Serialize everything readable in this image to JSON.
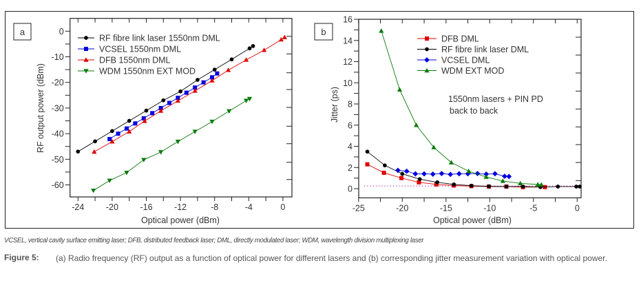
{
  "figure": {
    "abbreviations": "VCSEL, vertical cavity surface emitting laser; DFB, distributed feedback laser; DML, directly modulated laser; WDM, wavelength division multiplexing laser",
    "caption_label": "Figure 5:",
    "caption_text": "(a) Radio frequency (RF) output as a function of optical power for different lasers and (b) corresponding jitter measurement variation with optical power."
  },
  "chart_data": [
    {
      "id": "a",
      "panel_label": "a",
      "type": "line",
      "title": "",
      "xlabel": "Optical power (dBm)",
      "ylabel": "RF output power (dBm)",
      "xlim": [
        -25,
        1
      ],
      "ylim": [
        -65,
        4
      ],
      "xticks": [
        -24,
        -20,
        -16,
        -12,
        -8,
        -4,
        0
      ],
      "xtick_labels": [
        "-24",
        "-20",
        "-16",
        "-12",
        "-8",
        "-4",
        "0"
      ],
      "yticks": [
        0,
        -10,
        -20,
        -30,
        -40,
        -50,
        -60
      ],
      "ytick_labels": [
        "0",
        "-10",
        "-20",
        "-30",
        "-40",
        "-50",
        "-60"
      ],
      "grid": false,
      "legend_position": "top-left",
      "series": [
        {
          "name": "RF fibre link laser 1550nm DML",
          "color": "#000000",
          "marker": "circle",
          "x": [
            -24,
            -22,
            -20,
            -18,
            -16,
            -14,
            -12,
            -10,
            -8,
            -6,
            -3.9,
            -3.5
          ],
          "y": [
            -47,
            -43,
            -39,
            -35,
            -31,
            -27,
            -23.5,
            -19,
            -15,
            -11,
            -6.7,
            -5.8
          ]
        },
        {
          "name": "VCSEL 1550nm DML",
          "color": "#0000dd",
          "marker": "square",
          "x": [
            -20.3,
            -19.3,
            -18.3,
            -17.3,
            -16.3,
            -15.3,
            -14.3,
            -13.3,
            -12.3,
            -11.3,
            -10.3,
            -9.3,
            -8.3,
            -7.7
          ],
          "y": [
            -42.1,
            -40,
            -38,
            -36,
            -34,
            -32,
            -30,
            -28,
            -26,
            -24,
            -22,
            -20,
            -18,
            -16.5
          ]
        },
        {
          "name": "DFB 1550nm DML",
          "color": "#e00000",
          "marker": "triangle-up",
          "x": [
            -22.1,
            -20,
            -18,
            -16.2,
            -14.3,
            -12.3,
            -10.3,
            -8.3,
            -6.4,
            -4.3,
            -2.2,
            -0.2,
            0.2
          ],
          "y": [
            -47.1,
            -43.1,
            -39.2,
            -35.1,
            -31.1,
            -27.2,
            -23.3,
            -19.3,
            -15.2,
            -11.2,
            -7.4,
            -3.3,
            -2.4
          ]
        },
        {
          "name": "WDM 1550nm EXT MOD",
          "color": "#0a7a0a",
          "marker": "triangle-down",
          "x": [
            -22.2,
            -20.3,
            -18.3,
            -16.3,
            -14.3,
            -12.3,
            -10.3,
            -8.3,
            -6.3,
            -4.3,
            -3.9
          ],
          "y": [
            -62.2,
            -58.3,
            -55.2,
            -50.2,
            -47.2,
            -43.1,
            -39.2,
            -35.3,
            -31.2,
            -27.1,
            -26.4
          ]
        }
      ]
    },
    {
      "id": "b",
      "panel_label": "b",
      "type": "line",
      "title": "",
      "xlabel": "Optical power (dBm)",
      "ylabel": "Jitter (ps)",
      "xlim": [
        -25,
        0.5
      ],
      "ylim": [
        -0.85,
        16
      ],
      "xticks": [
        -25,
        -20,
        -15,
        -10,
        -5,
        0
      ],
      "xtick_labels": [
        "-25",
        "-20",
        "-15",
        "-10",
        "-5",
        "0"
      ],
      "yticks": [
        0,
        2,
        4,
        6,
        8,
        10,
        12,
        14,
        16
      ],
      "ytick_labels": [
        "0",
        "2",
        "4",
        "6",
        "8",
        "10",
        "12",
        "14",
        "16"
      ],
      "grid": false,
      "legend_position": "top-center",
      "annotation": [
        "1550nm lasers + PIN PD",
        "back to back"
      ],
      "reference_line": {
        "y": 0.25,
        "style": "dotted",
        "color": "#aa00aa"
      },
      "series": [
        {
          "name": "DFB DML",
          "color": "#e00000",
          "marker": "square",
          "x": [
            -24,
            -22.1,
            -20.1,
            -18.1,
            -16.1,
            -14.1,
            -12.1,
            -10.1,
            -8.1,
            -6.2,
            -3.7
          ],
          "y": [
            2.3,
            1.5,
            1.0,
            0.6,
            0.4,
            0.3,
            0.24,
            0.2,
            0.2,
            0.15,
            0.15
          ]
        },
        {
          "name": "RF fibre link laser DML",
          "color": "#000000",
          "marker": "circle",
          "x": [
            -24,
            -22,
            -20,
            -18,
            -16,
            -14.1,
            -12.1,
            -10.1,
            -8.1,
            -6.2,
            -4.2,
            -2.2,
            -0.1,
            0.3
          ],
          "y": [
            3.5,
            2.2,
            1.4,
            0.9,
            0.6,
            0.4,
            0.28,
            0.22,
            0.2,
            0.2,
            0.15,
            0.2,
            0.2,
            0.2
          ]
        },
        {
          "name": "VCSEL DML",
          "color": "#0000dd",
          "marker": "diamond",
          "x": [
            -20.5,
            -19.5,
            -18.5,
            -17.5,
            -16.5,
            -15.5,
            -14.5,
            -13.5,
            -12.5,
            -11.4,
            -10.4,
            -9.4,
            -8.3,
            -7.8
          ],
          "y": [
            1.73,
            1.65,
            1.4,
            1.4,
            1.37,
            1.43,
            1.35,
            1.41,
            1.41,
            1.43,
            1.37,
            1.41,
            1.17,
            1.15
          ]
        },
        {
          "name": "WDM EXT MOD",
          "color": "#0a7a0a",
          "marker": "triangle-up",
          "x": [
            -22.4,
            -20.3,
            -18.4,
            -16.4,
            -14.4,
            -12.4,
            -10.4,
            -8.5,
            -6.5,
            -4.5,
            -4.1
          ],
          "y": [
            14.9,
            9.35,
            6.0,
            3.9,
            2.47,
            1.65,
            1.1,
            0.72,
            0.5,
            0.39,
            0.37
          ]
        }
      ]
    }
  ]
}
